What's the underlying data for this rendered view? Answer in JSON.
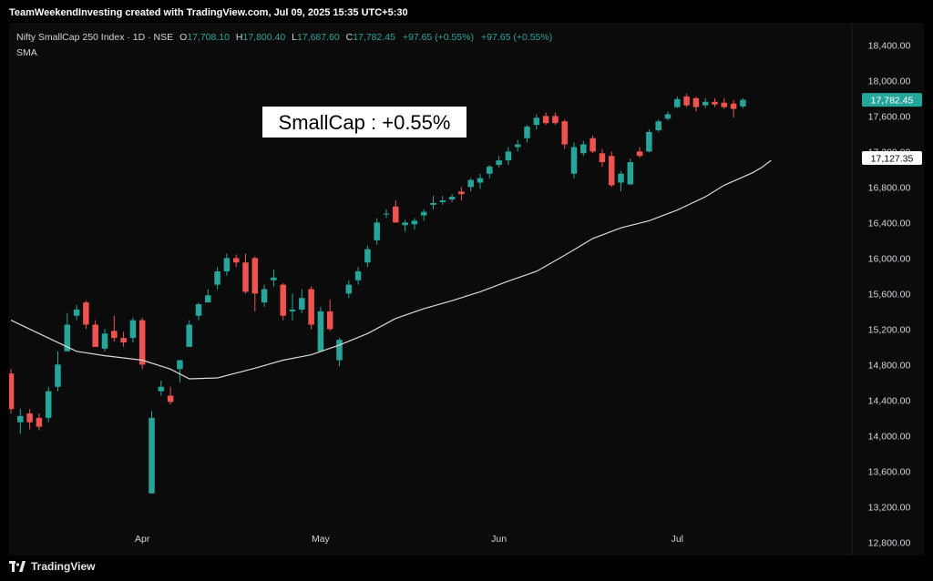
{
  "banner": "TeamWeekendInvesting created with TradingView.com, Jul 09, 2025 15:35 UTC+5:30",
  "legend": {
    "symbol": "Nifty SmallCap 250 Index · 1D · NSE",
    "o_label": "O",
    "o_value": "17,708.10",
    "h_label": "H",
    "h_value": "17,800.40",
    "l_label": "L",
    "l_value": "17,687.60",
    "c_label": "C",
    "c_value": "17,782.45",
    "change": "+97.65 (+0.55%)",
    "change2": "+97.65 (+0.55%)",
    "indicator": "SMA"
  },
  "annotation": "SmallCap : +0.55%",
  "price_tag": "17,782.45",
  "sma_tag": "17,127.35",
  "footer_brand": "TradingView",
  "colors": {
    "up": "#26a69a",
    "down": "#ef5350",
    "sma": "#d9d9d9",
    "background": "#0b0b0b",
    "text": "#d1d4dc"
  },
  "chart_data": {
    "type": "candlestick",
    "ylim": [
      12650,
      18650
    ],
    "y_ticks": [
      "18,400.00",
      "18,000.00",
      "17,600.00",
      "17,200.00",
      "16,800.00",
      "16,400.00",
      "16,000.00",
      "15,600.00",
      "15,200.00",
      "14,800.00",
      "14,400.00",
      "14,000.00",
      "13,600.00",
      "13,200.00",
      "12,800.00"
    ],
    "y_tick_values": [
      18400,
      18000,
      17600,
      17200,
      16800,
      16400,
      16000,
      15600,
      15200,
      14800,
      14400,
      14000,
      13600,
      13200,
      12800
    ],
    "x_ticks": [
      {
        "label": "Apr",
        "index": 14
      },
      {
        "label": "May",
        "index": 33
      },
      {
        "label": "Jun",
        "index": 52
      },
      {
        "label": "Jul",
        "index": 71
      }
    ],
    "candles": [
      {
        "o": 14700,
        "h": 14750,
        "l": 14250,
        "c": 14300
      },
      {
        "o": 14150,
        "h": 14300,
        "l": 14020,
        "c": 14220
      },
      {
        "o": 14250,
        "h": 14300,
        "l": 14070,
        "c": 14150
      },
      {
        "o": 14200,
        "h": 14250,
        "l": 14060,
        "c": 14100
      },
      {
        "o": 14200,
        "h": 14550,
        "l": 14150,
        "c": 14500
      },
      {
        "o": 14550,
        "h": 14950,
        "l": 14500,
        "c": 14800
      },
      {
        "o": 14950,
        "h": 15380,
        "l": 14950,
        "c": 15250
      },
      {
        "o": 15350,
        "h": 15470,
        "l": 15300,
        "c": 15420
      },
      {
        "o": 15500,
        "h": 15520,
        "l": 15200,
        "c": 15250
      },
      {
        "o": 15250,
        "h": 15300,
        "l": 15000,
        "c": 15000
      },
      {
        "o": 14980,
        "h": 15200,
        "l": 14950,
        "c": 15150
      },
      {
        "o": 15180,
        "h": 15350,
        "l": 15060,
        "c": 15100
      },
      {
        "o": 15100,
        "h": 15170,
        "l": 15000,
        "c": 15050
      },
      {
        "o": 15100,
        "h": 15330,
        "l": 15050,
        "c": 15300
      },
      {
        "o": 15300,
        "h": 15330,
        "l": 14750,
        "c": 14800
      },
      {
        "o": 13350,
        "h": 14280,
        "l": 13350,
        "c": 14200
      },
      {
        "o": 14500,
        "h": 14620,
        "l": 14450,
        "c": 14550
      },
      {
        "o": 14450,
        "h": 14550,
        "l": 14350,
        "c": 14380
      },
      {
        "o": 14750,
        "h": 14850,
        "l": 14600,
        "c": 14850
      },
      {
        "o": 15000,
        "h": 15300,
        "l": 15000,
        "c": 15250
      },
      {
        "o": 15350,
        "h": 15500,
        "l": 15300,
        "c": 15480
      },
      {
        "o": 15500,
        "h": 15650,
        "l": 15500,
        "c": 15580
      },
      {
        "o": 15700,
        "h": 15900,
        "l": 15650,
        "c": 15850
      },
      {
        "o": 15850,
        "h": 16050,
        "l": 15800,
        "c": 16000
      },
      {
        "o": 16000,
        "h": 16040,
        "l": 15900,
        "c": 15950
      },
      {
        "o": 15950,
        "h": 16050,
        "l": 15600,
        "c": 15620
      },
      {
        "o": 16000,
        "h": 16020,
        "l": 15400,
        "c": 15600
      },
      {
        "o": 15500,
        "h": 15700,
        "l": 15450,
        "c": 15650
      },
      {
        "o": 15750,
        "h": 15870,
        "l": 15680,
        "c": 15780
      },
      {
        "o": 15700,
        "h": 15720,
        "l": 15300,
        "c": 15350
      },
      {
        "o": 15400,
        "h": 15600,
        "l": 15300,
        "c": 15420
      },
      {
        "o": 15420,
        "h": 15650,
        "l": 15380,
        "c": 15550
      },
      {
        "o": 15650,
        "h": 15680,
        "l": 15200,
        "c": 15250
      },
      {
        "o": 14950,
        "h": 15450,
        "l": 14950,
        "c": 15400
      },
      {
        "o": 15400,
        "h": 15530,
        "l": 15180,
        "c": 15200
      },
      {
        "o": 14850,
        "h": 15100,
        "l": 14780,
        "c": 15080
      },
      {
        "o": 15600,
        "h": 15750,
        "l": 15550,
        "c": 15700
      },
      {
        "o": 15750,
        "h": 15900,
        "l": 15700,
        "c": 15850
      },
      {
        "o": 15950,
        "h": 16140,
        "l": 15900,
        "c": 16100
      },
      {
        "o": 16200,
        "h": 16450,
        "l": 16150,
        "c": 16400
      },
      {
        "o": 16500,
        "h": 16550,
        "l": 16450,
        "c": 16500
      },
      {
        "o": 16580,
        "h": 16650,
        "l": 16400,
        "c": 16400
      },
      {
        "o": 16370,
        "h": 16430,
        "l": 16300,
        "c": 16400
      },
      {
        "o": 16380,
        "h": 16450,
        "l": 16320,
        "c": 16420
      },
      {
        "o": 16480,
        "h": 16550,
        "l": 16420,
        "c": 16520
      },
      {
        "o": 16600,
        "h": 16700,
        "l": 16550,
        "c": 16620
      },
      {
        "o": 16630,
        "h": 16700,
        "l": 16600,
        "c": 16650
      },
      {
        "o": 16660,
        "h": 16720,
        "l": 16630,
        "c": 16690
      },
      {
        "o": 16750,
        "h": 16800,
        "l": 16650,
        "c": 16720
      },
      {
        "o": 16800,
        "h": 16900,
        "l": 16750,
        "c": 16880
      },
      {
        "o": 16850,
        "h": 16950,
        "l": 16780,
        "c": 16900
      },
      {
        "o": 16950,
        "h": 17050,
        "l": 16900,
        "c": 17030
      },
      {
        "o": 17050,
        "h": 17150,
        "l": 17020,
        "c": 17100
      },
      {
        "o": 17100,
        "h": 17250,
        "l": 17050,
        "c": 17200
      },
      {
        "o": 17250,
        "h": 17330,
        "l": 17200,
        "c": 17280
      },
      {
        "o": 17350,
        "h": 17500,
        "l": 17300,
        "c": 17480
      },
      {
        "o": 17500,
        "h": 17620,
        "l": 17450,
        "c": 17580
      },
      {
        "o": 17600,
        "h": 17640,
        "l": 17500,
        "c": 17520
      },
      {
        "o": 17600,
        "h": 17640,
        "l": 17500,
        "c": 17520
      },
      {
        "o": 17540,
        "h": 17560,
        "l": 17230,
        "c": 17280
      },
      {
        "o": 16950,
        "h": 17300,
        "l": 16900,
        "c": 17250
      },
      {
        "o": 17180,
        "h": 17320,
        "l": 17150,
        "c": 17280
      },
      {
        "o": 17350,
        "h": 17380,
        "l": 17180,
        "c": 17200
      },
      {
        "o": 17180,
        "h": 17230,
        "l": 17030,
        "c": 17080
      },
      {
        "o": 17150,
        "h": 17200,
        "l": 16800,
        "c": 16820
      },
      {
        "o": 16850,
        "h": 16980,
        "l": 16750,
        "c": 16950
      },
      {
        "o": 16830,
        "h": 17120,
        "l": 16820,
        "c": 17080
      },
      {
        "o": 17200,
        "h": 17250,
        "l": 17130,
        "c": 17150
      },
      {
        "o": 17200,
        "h": 17450,
        "l": 17190,
        "c": 17420
      },
      {
        "o": 17440,
        "h": 17560,
        "l": 17420,
        "c": 17540
      },
      {
        "o": 17570,
        "h": 17650,
        "l": 17550,
        "c": 17620
      },
      {
        "o": 17700,
        "h": 17820,
        "l": 17690,
        "c": 17790
      },
      {
        "o": 17820,
        "h": 17850,
        "l": 17700,
        "c": 17720
      },
      {
        "o": 17800,
        "h": 17820,
        "l": 17650,
        "c": 17700
      },
      {
        "o": 17720,
        "h": 17800,
        "l": 17690,
        "c": 17760
      },
      {
        "o": 17760,
        "h": 17800,
        "l": 17700,
        "c": 17730
      },
      {
        "o": 17750,
        "h": 17800,
        "l": 17680,
        "c": 17700
      },
      {
        "o": 17740,
        "h": 17780,
        "l": 17580,
        "c": 17680
      },
      {
        "o": 17708.1,
        "h": 17800.4,
        "l": 17687.6,
        "c": 17782.45
      }
    ],
    "sma": [
      [
        0,
        15300
      ],
      [
        3,
        15150
      ],
      [
        7,
        14950
      ],
      [
        10,
        14900
      ],
      [
        14,
        14850
      ],
      [
        17,
        14750
      ],
      [
        19,
        14640
      ],
      [
        22,
        14650
      ],
      [
        26,
        14760
      ],
      [
        29,
        14850
      ],
      [
        32,
        14910
      ],
      [
        35,
        15020
      ],
      [
        38,
        15150
      ],
      [
        41,
        15320
      ],
      [
        44,
        15430
      ],
      [
        47,
        15520
      ],
      [
        50,
        15620
      ],
      [
        53,
        15740
      ],
      [
        56,
        15850
      ],
      [
        59,
        16030
      ],
      [
        62,
        16220
      ],
      [
        65,
        16340
      ],
      [
        68,
        16420
      ],
      [
        71,
        16540
      ],
      [
        74,
        16690
      ],
      [
        76,
        16820
      ],
      [
        79,
        16960
      ],
      [
        80,
        17020
      ],
      [
        81,
        17100
      ]
    ]
  }
}
